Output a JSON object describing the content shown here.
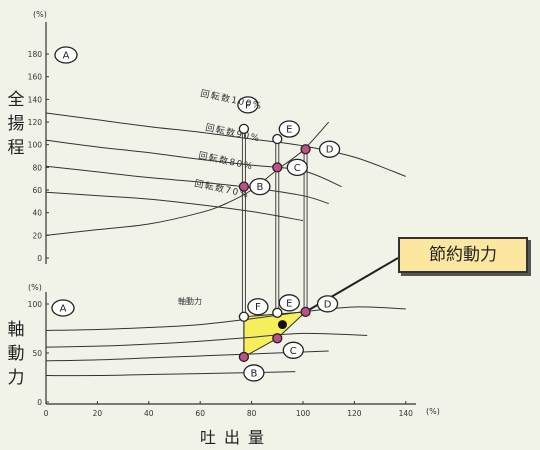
{
  "chart_data": [
    {
      "type": "line",
      "ylabel": "全揚程",
      "yunit": "(%)",
      "xlabel": "吐出量",
      "xunit": "(%)",
      "xlim": [
        0,
        140
      ],
      "ylim": [
        0,
        180
      ],
      "yticks": [
        "180",
        "160",
        "140",
        "120",
        "100",
        "80",
        "60",
        "40",
        "20",
        "0"
      ],
      "xticks": [
        "0",
        "20",
        "40",
        "60",
        "80",
        "100",
        "120",
        "140"
      ],
      "grid": false,
      "series": [
        {
          "name": "回転数100%",
          "x": [
            0,
            20,
            40,
            60,
            80,
            100,
            120,
            140
          ],
          "values": [
            128,
            122,
            116,
            111,
            105,
            99,
            89,
            72
          ]
        },
        {
          "name": "回転数90%",
          "x": [
            0,
            20,
            40,
            60,
            80,
            100,
            115
          ],
          "values": [
            104,
            98,
            93,
            87,
            82,
            77,
            63
          ]
        },
        {
          "name": "回転数80%",
          "x": [
            0,
            20,
            40,
            60,
            80,
            100,
            110
          ],
          "values": [
            81,
            76,
            71,
            67,
            62,
            55,
            48
          ]
        },
        {
          "name": "回転数70%",
          "x": [
            0,
            20,
            40,
            60,
            80,
            100
          ],
          "values": [
            58,
            55,
            52,
            47,
            41,
            33
          ]
        }
      ],
      "resistance_curve": {
        "x": [
          0,
          20,
          40,
          60,
          70,
          80,
          90,
          100,
          110
        ],
        "values": [
          20,
          25,
          30,
          40,
          48,
          60,
          78,
          95,
          120
        ]
      },
      "curve_labels": [
        "A"
      ],
      "points": [
        {
          "label": "F",
          "x": 77,
          "y": 114,
          "filled": false
        },
        {
          "label": "E",
          "x": 90,
          "y": 105,
          "filled": false
        },
        {
          "label": "D",
          "x": 101,
          "y": 96,
          "filled": true
        },
        {
          "label": "C",
          "x": 90,
          "y": 80,
          "filled": true
        },
        {
          "label": "B",
          "x": 77,
          "y": 63,
          "filled": true
        }
      ]
    },
    {
      "type": "line",
      "ylabel": "軸動力",
      "yunit": "(%)",
      "xlim": [
        0,
        140
      ],
      "ylim": [
        0,
        110
      ],
      "yticks": [
        "100",
        "50",
        "0"
      ],
      "grid": false,
      "series_label": "軸動力",
      "series": [
        {
          "x": [
            0,
            20,
            40,
            60,
            80,
            100,
            120,
            140
          ],
          "values": [
            73,
            74,
            76,
            79,
            85,
            92,
            97,
            95
          ]
        },
        {
          "x": [
            0,
            20,
            40,
            60,
            80,
            100,
            125
          ],
          "values": [
            56,
            57,
            59,
            62,
            66,
            70,
            68
          ]
        },
        {
          "x": [
            0,
            20,
            40,
            60,
            80,
            100,
            110
          ],
          "values": [
            42,
            43,
            45,
            47,
            49,
            51,
            52
          ]
        },
        {
          "x": [
            0,
            20,
            40,
            60,
            80,
            97
          ],
          "values": [
            27,
            27,
            28,
            29,
            30,
            31
          ]
        }
      ],
      "curve_labels": [
        "A"
      ],
      "points": [
        {
          "label": "F",
          "x": 77,
          "y": 87,
          "filled": false
        },
        {
          "label": "E",
          "x": 90,
          "y": 91,
          "filled": false
        },
        {
          "label": "D",
          "x": 101,
          "y": 92,
          "filled": true
        },
        {
          "label": "C",
          "x": 90,
          "y": 65,
          "filled": true
        },
        {
          "label": "B",
          "x": 77,
          "y": 46,
          "filled": true
        }
      ],
      "marker_point": {
        "x": 92,
        "y": 79
      }
    }
  ],
  "callout_label": "節約動力",
  "colors": {
    "background": "#f1f3e9",
    "line": "#333333",
    "filled_point": "#c0508c",
    "savings_area": "#f6ee5a",
    "callout": "#fbe7a0"
  }
}
